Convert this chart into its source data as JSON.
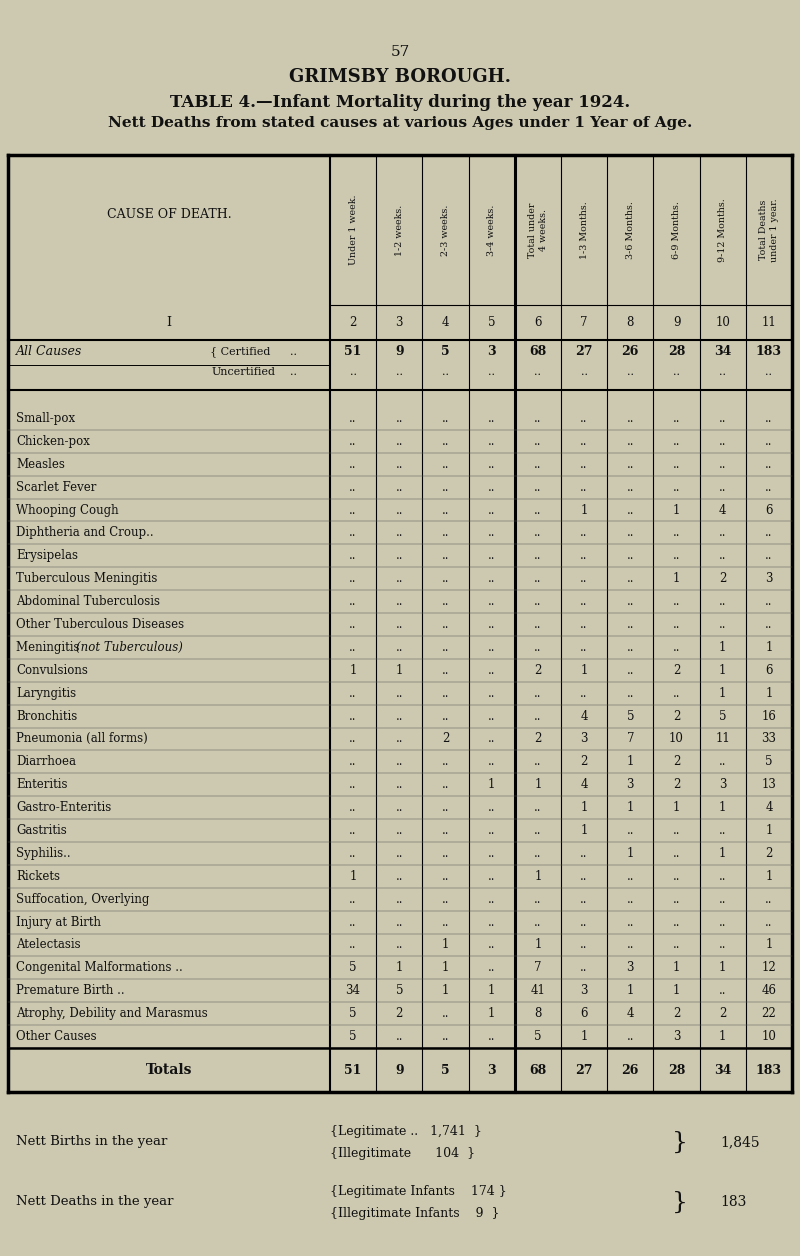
{
  "page_number": "57",
  "title1": "GRIMSBY BOROUGH.",
  "title2": "TABLE 4.—Infant Mortality during the year 1924.",
  "title3": "Nett Deaths from stated causes at various Ages under 1 Year of Age.",
  "col_headers_rotated": [
    "Under 1 week.",
    "1-2 weeks.",
    "2-3 weeks.",
    "3-4 weeks.",
    "Total under\n4 weeks.",
    "1-3 Months.",
    "3-6 Months.",
    "6-9 Months.",
    "9-12 Months.",
    "Total Deaths\nunder 1 year."
  ],
  "col_numbers": [
    "2",
    "3",
    "4",
    "5",
    "6",
    "7",
    "8",
    "9",
    "10",
    "11"
  ],
  "all_causes_certified": [
    "51",
    "9",
    "5",
    "3",
    "68",
    "27",
    "26",
    "28",
    "34",
    "183"
  ],
  "all_causes_uncertified": [
    "..",
    "..",
    "..",
    "..",
    "..",
    "..",
    "..",
    "..",
    "..",
    ".."
  ],
  "rows": [
    {
      "cause": "Small-pox",
      "dots": true,
      "data": [
        "..",
        "..",
        "..",
        "..",
        "..",
        "..",
        "..",
        "..",
        "..",
        ".."
      ]
    },
    {
      "cause": "Chicken-pox",
      "dots": true,
      "data": [
        "..",
        "..",
        "..",
        "..",
        "..",
        "..",
        "..",
        "..",
        "..",
        ".."
      ]
    },
    {
      "cause": "Measles",
      "dots": true,
      "data": [
        "..",
        "..",
        "..",
        "..",
        "..",
        "..",
        "..",
        "..",
        "..",
        ".."
      ]
    },
    {
      "cause": "Scarlet Fever",
      "dots": true,
      "data": [
        "..",
        "..",
        "..",
        "..",
        "..",
        "..",
        "..",
        "..",
        "..",
        ".."
      ]
    },
    {
      "cause": "Whooping Cough",
      "dots": true,
      "data": [
        "..",
        "..",
        "..",
        "..",
        "..",
        "1",
        "..",
        "1",
        "4",
        "6"
      ]
    },
    {
      "cause": "Diphtheria and Croup..",
      "dots": true,
      "data": [
        "..",
        "..",
        "..",
        "..",
        "..",
        "..",
        "..",
        "..",
        "..",
        ".."
      ]
    },
    {
      "cause": "Erysipelas",
      "dots": true,
      "data": [
        "..",
        "..",
        "..",
        "..",
        "..",
        "..",
        "..",
        "..",
        "..",
        ".."
      ]
    },
    {
      "cause": "Tuberculous Meningitis",
      "dots": true,
      "data": [
        "..",
        "..",
        "..",
        "..",
        "..",
        "..",
        "..",
        "1",
        "2",
        "3"
      ]
    },
    {
      "cause": "Abdominal Tuberculosis",
      "dots": true,
      "data": [
        "..",
        "..",
        "..",
        "..",
        "..",
        "..",
        "..",
        "..",
        "..",
        ".."
      ]
    },
    {
      "cause": "Other Tuberculous Diseases",
      "dots": false,
      "data": [
        "..",
        "..",
        "..",
        "..",
        "..",
        "..",
        "..",
        "..",
        "..",
        ".."
      ]
    },
    {
      "cause": "Meningitis (not Tuberculous)",
      "dots": false,
      "italic_part": "(not Tuberculous)",
      "data": [
        "..",
        "..",
        "..",
        "..",
        "..",
        "..",
        "..",
        "..",
        "1",
        "1"
      ]
    },
    {
      "cause": "Convulsions",
      "dots": true,
      "data": [
        "1",
        "1",
        "..",
        "..",
        "2",
        "1",
        "..",
        "2",
        "1",
        "6"
      ]
    },
    {
      "cause": "Laryngitis",
      "dots": true,
      "data": [
        "..",
        "..",
        "..",
        "..",
        "..",
        "..",
        "..",
        "..",
        "1",
        "1"
      ]
    },
    {
      "cause": "Bronchitis",
      "dots": true,
      "data": [
        "..",
        "..",
        "..",
        "..",
        "..",
        "4",
        "5",
        "2",
        "5",
        "16"
      ]
    },
    {
      "cause": "Pneumonia (all forms)",
      "dots": true,
      "data": [
        "..",
        "..",
        "2",
        "..",
        "2",
        "3",
        "7",
        "10",
        "11",
        "33"
      ]
    },
    {
      "cause": "Diarrhoea",
      "dots": true,
      "data": [
        "..",
        "..",
        "..",
        "..",
        "..",
        "2",
        "1",
        "2",
        "..",
        "5"
      ]
    },
    {
      "cause": "Enteritis",
      "dots": true,
      "data": [
        "..",
        "..",
        "..",
        "1",
        "1",
        "4",
        "3",
        "2",
        "3",
        "13"
      ]
    },
    {
      "cause": "Gastro-Enteritis",
      "dots": true,
      "data": [
        "..",
        "..",
        "..",
        "..",
        "..",
        "1",
        "1",
        "1",
        "1",
        "4"
      ]
    },
    {
      "cause": "Gastritis",
      "dots": true,
      "data": [
        "..",
        "..",
        "..",
        "..",
        "..",
        "1",
        "..",
        "..",
        "..",
        "1"
      ]
    },
    {
      "cause": "Syphilis..",
      "dots": true,
      "data": [
        "..",
        "..",
        "..",
        "..",
        "..",
        "..",
        "1",
        "..",
        "1",
        "2"
      ]
    },
    {
      "cause": "Rickets",
      "dots": true,
      "data": [
        "1",
        "..",
        "..",
        "..",
        "1",
        "..",
        "..",
        "..",
        "..",
        "1"
      ]
    },
    {
      "cause": "Suffocation, Overlying",
      "dots": true,
      "data": [
        "..",
        "..",
        "..",
        "..",
        "..",
        "..",
        "..",
        "..",
        "..",
        ".."
      ]
    },
    {
      "cause": "Injury at Birth",
      "dots": true,
      "data": [
        "..",
        "..",
        "..",
        "..",
        "..",
        "..",
        "..",
        "..",
        "..",
        ".."
      ]
    },
    {
      "cause": "Atelectasis",
      "dots": true,
      "data": [
        "..",
        "..",
        "1",
        "..",
        "1",
        "..",
        "..",
        "..",
        "..",
        "1"
      ]
    },
    {
      "cause": "Congenital Malformations ..",
      "dots": false,
      "data": [
        "5",
        "1",
        "1",
        "..",
        "7",
        "..",
        "3",
        "1",
        "1",
        "12"
      ]
    },
    {
      "cause": "Premature Birth ..",
      "dots": false,
      "data": [
        "34",
        "5",
        "1",
        "1",
        "41",
        "3",
        "1",
        "1",
        "..",
        "46"
      ]
    },
    {
      "cause": "Atrophy, Debility and Marasmus",
      "dots": false,
      "data": [
        "5",
        "2",
        "..",
        "1",
        "8",
        "6",
        "4",
        "2",
        "2",
        "22"
      ]
    },
    {
      "cause": "Other Causes",
      "dots": true,
      "data": [
        "5",
        "..",
        "..",
        "..",
        "5",
        "1",
        "..",
        "3",
        "1",
        "10"
      ]
    }
  ],
  "totals_row": [
    "51",
    "9",
    "5",
    "3",
    "68",
    "27",
    "26",
    "28",
    "34",
    "183"
  ],
  "footer_births_legitimate": "1,741",
  "footer_births_illegitimate": "104",
  "footer_births_total": "1,845",
  "footer_deaths_legitimate": "174",
  "footer_deaths_illegitimate": "9",
  "footer_deaths_total": "183",
  "bg_color": "#cdc9b0",
  "table_bg": "#e0dcc8",
  "text_color": "#111111"
}
